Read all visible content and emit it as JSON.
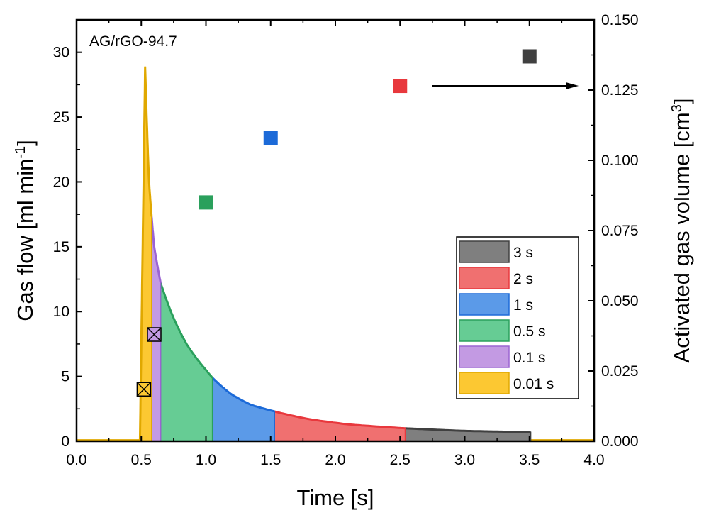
{
  "chart_data": {
    "type": "area",
    "annotation": "AG/rGO-94.7",
    "xlabel": "Time [s]",
    "ylabel_left": {
      "pre": "Gas flow [ml min",
      "sup": "-1",
      "post": "]"
    },
    "ylabel_right": {
      "pre": "Activated gas volume [cm",
      "sup": "3",
      "post": "]"
    },
    "xlim": [
      0,
      4
    ],
    "ylim_left": [
      0,
      32.5
    ],
    "ylim_right": [
      0,
      0.15
    ],
    "x_ticks": [
      "0.0",
      "0.5",
      "1.0",
      "1.5",
      "2.0",
      "2.5",
      "3.0",
      "3.5",
      "4.0"
    ],
    "y_left_ticks": [
      "0",
      "5",
      "10",
      "15",
      "20",
      "25",
      "30"
    ],
    "y_right_ticks": [
      "0.000",
      "0.025",
      "0.050",
      "0.075",
      "0.100",
      "0.125",
      "0.150"
    ],
    "flow_curve": {
      "baseline": 0.1,
      "onset_time": 0.49,
      "peak_time": 0.53,
      "peak_flow": 28.9,
      "decay_points": [
        {
          "t": 0.53,
          "flow": 28.9
        },
        {
          "t": 0.56,
          "flow": 20.0
        },
        {
          "t": 0.6,
          "flow": 15.0
        },
        {
          "t": 0.65,
          "flow": 12.2
        },
        {
          "t": 0.75,
          "flow": 9.5
        },
        {
          "t": 0.85,
          "flow": 7.5
        },
        {
          "t": 1.0,
          "flow": 5.5
        },
        {
          "t": 1.05,
          "flow": 4.9
        },
        {
          "t": 1.2,
          "flow": 3.6
        },
        {
          "t": 1.35,
          "flow": 2.8
        },
        {
          "t": 1.53,
          "flow": 2.3
        },
        {
          "t": 1.8,
          "flow": 1.7
        },
        {
          "t": 2.1,
          "flow": 1.3
        },
        {
          "t": 2.54,
          "flow": 1.0
        },
        {
          "t": 3.0,
          "flow": 0.8
        },
        {
          "t": 3.5,
          "flow": 0.7
        }
      ]
    },
    "series": [
      {
        "name": "3 s",
        "t_start": 2.54,
        "t_end": 3.51,
        "fill": "#7f7f7f",
        "edge": "#404040",
        "volume": 0.137,
        "volume_t": 3.5
      },
      {
        "name": "2 s",
        "t_start": 1.53,
        "t_end": 2.54,
        "fill": "#f07070",
        "edge": "#e8383d",
        "volume": 0.1265,
        "volume_t": 2.5
      },
      {
        "name": "1 s",
        "t_start": 1.05,
        "t_end": 1.53,
        "fill": "#5b9ae8",
        "edge": "#1c6ad8",
        "volume": 0.108,
        "volume_t": 1.5
      },
      {
        "name": "0.5 s",
        "t_start": 0.65,
        "t_end": 1.05,
        "fill": "#66cc94",
        "edge": "#2aa05c",
        "volume": 0.085,
        "volume_t": 1.0
      },
      {
        "name": "0.1 s",
        "t_start": 0.58,
        "t_end": 0.65,
        "fill": "#c39ae3",
        "edge": "#9b64d2",
        "volume": 0.038,
        "volume_t": 0.6
      },
      {
        "name": "0.01 s",
        "t_start": 0.49,
        "t_end": 0.58,
        "fill": "#fcc832",
        "edge": "#e0a800",
        "volume": 0.0185,
        "volume_t": 0.52
      }
    ],
    "arrow": {
      "from_t": 2.75,
      "to_t": 3.88,
      "y_right": 0.1265
    },
    "legend_position": "right"
  }
}
